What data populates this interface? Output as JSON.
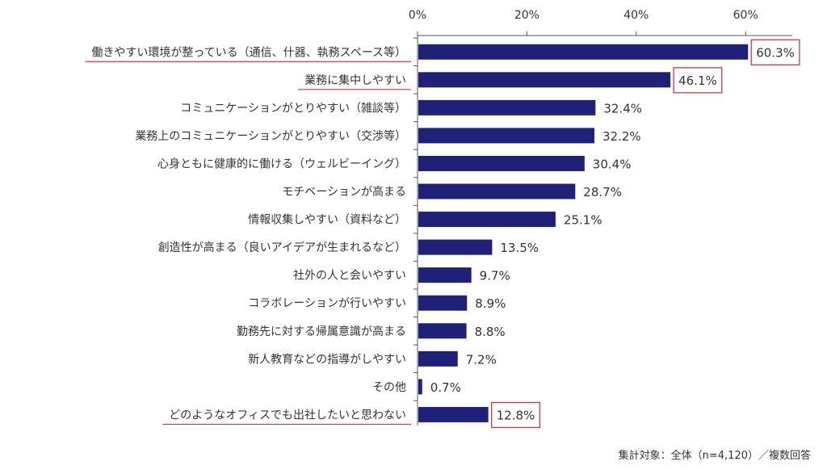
{
  "colors": {
    "bar": "#1f2179",
    "highlight": "#d9363e",
    "axis": "#555555",
    "text": "#333333"
  },
  "footnote": "集計対象：全体（n=4,120）／複数回答",
  "chart_data": {
    "type": "bar",
    "orientation": "horizontal",
    "xlim": [
      0,
      70
    ],
    "ticks": [
      0,
      20,
      40,
      60
    ],
    "tick_labels": [
      "0%",
      "20%",
      "40%",
      "60%"
    ],
    "grid": false,
    "categories": [
      "働きやすい環境が整っている（通信、什器、執務スペース等）",
      "業務に集中しやすい",
      "コミュニケーションがとりやすい（雑談等）",
      "業務上のコミュニケーションがとりやすい（交渉等）",
      "心身ともに健康的に働ける（ウェルビーイング）",
      "モチベーションが高まる",
      "情報収集しやすい（資料など）",
      "創造性が高まる（良いアイデアが生まれるなど）",
      "社外の人と会いやすい",
      "コラボレーションが行いやすい",
      "勤務先に対する帰属意識が高まる",
      "新人教育などの指導がしやすい",
      "その他",
      "どのようなオフィスでも出社したいと思わない"
    ],
    "values": [
      60.3,
      46.1,
      32.4,
      32.2,
      30.4,
      28.7,
      25.1,
      13.5,
      9.7,
      8.9,
      8.8,
      7.2,
      0.7,
      12.8
    ],
    "value_labels": [
      "60.3%",
      "46.1%",
      "32.4%",
      "32.2%",
      "30.4%",
      "28.7%",
      "25.1%",
      "13.5%",
      "9.7%",
      "8.9%",
      "8.8%",
      "7.2%",
      "0.7%",
      "12.8%"
    ],
    "boxed_labels": [
      0,
      1,
      13
    ],
    "underlined_categories": [
      0,
      1,
      13
    ]
  }
}
